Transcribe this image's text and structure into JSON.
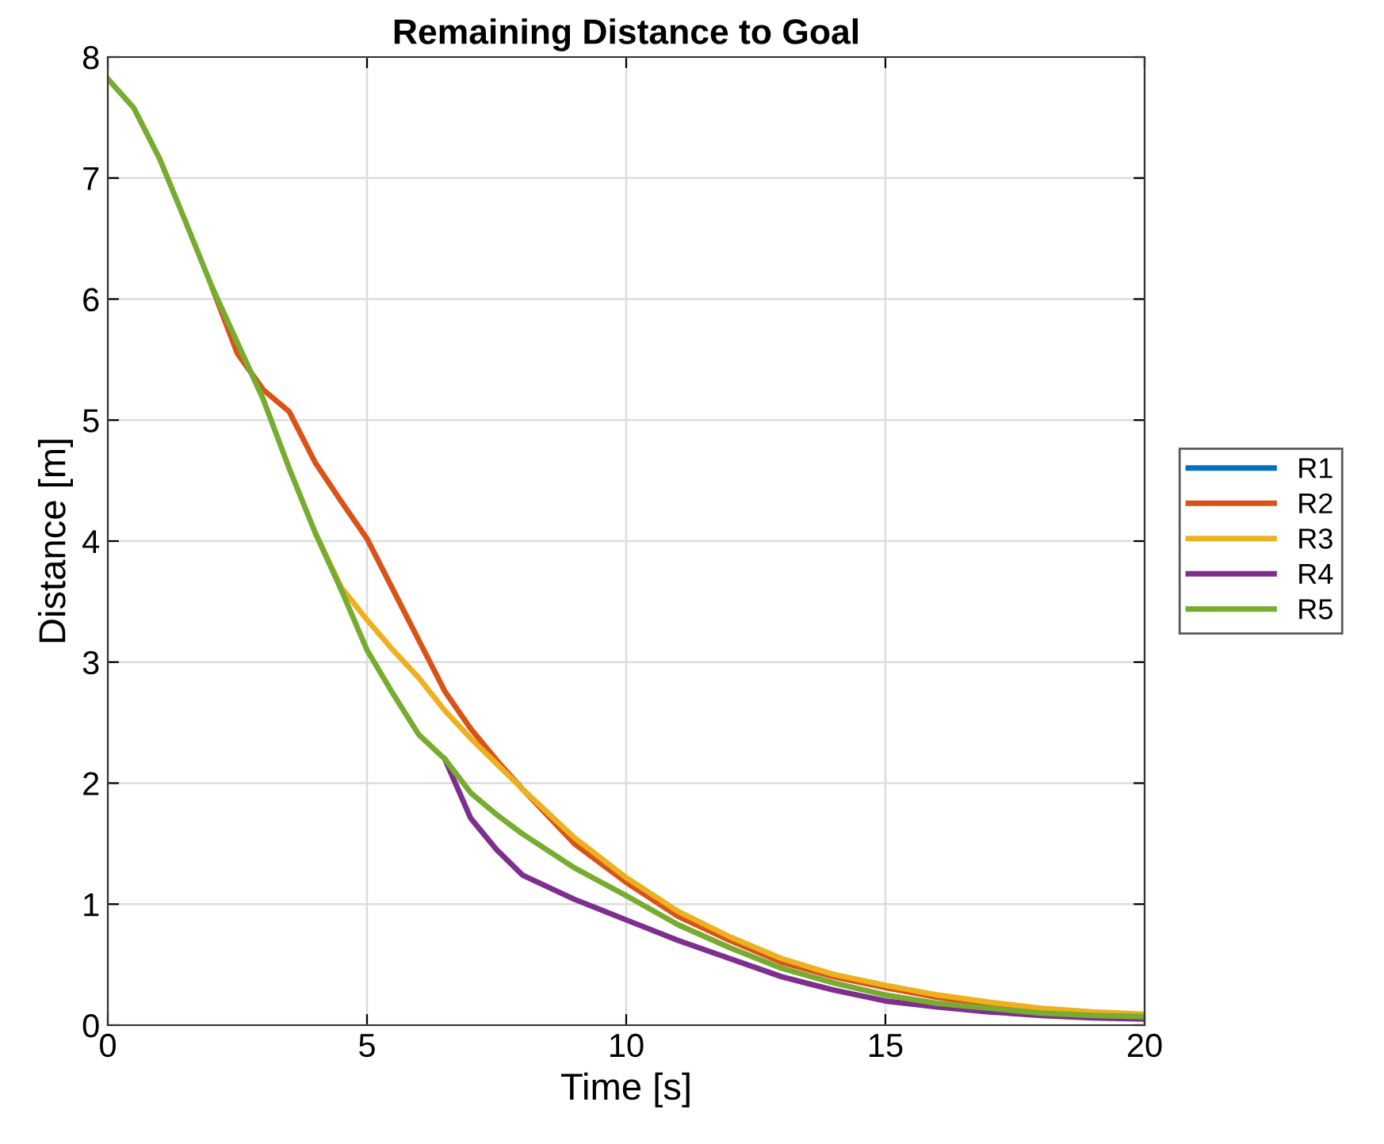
{
  "chart_data": {
    "type": "line",
    "title": "Remaining Distance to Goal",
    "xlabel": "Time [s]",
    "ylabel": "Distance [m]",
    "x": [
      0,
      0.5,
      1,
      1.5,
      2,
      2.5,
      3,
      3.5,
      4,
      4.5,
      5,
      5.5,
      6,
      6.5,
      7,
      7.5,
      8,
      9,
      10,
      11,
      12,
      13,
      14,
      15,
      16,
      17,
      18,
      19,
      20
    ],
    "series": [
      {
        "name": "R1",
        "color": "#0072bd",
        "values": [
          null,
          null,
          null,
          null,
          null,
          null,
          null,
          null,
          null,
          null,
          null,
          null,
          null,
          null,
          null,
          null,
          null,
          null,
          null,
          null,
          null,
          null,
          null,
          null,
          null,
          null,
          null,
          null,
          null
        ]
      },
      {
        "name": "R2",
        "color": "#d95319",
        "values": [
          null,
          null,
          null,
          null,
          6.11,
          5.55,
          5.25,
          5.07,
          4.65,
          4.33,
          4.02,
          3.6,
          3.18,
          2.76,
          2.45,
          2.19,
          1.95,
          1.5,
          1.18,
          0.9,
          0.7,
          0.52,
          0.4,
          0.31,
          0.23,
          0.17,
          0.13,
          null,
          null
        ]
      },
      {
        "name": "R3",
        "color": "#edb120",
        "values": [
          null,
          null,
          null,
          null,
          null,
          null,
          null,
          null,
          4.07,
          3.62,
          3.35,
          3.1,
          2.87,
          2.6,
          2.37,
          2.16,
          1.95,
          1.55,
          1.22,
          0.94,
          0.73,
          0.55,
          0.42,
          0.33,
          0.25,
          0.19,
          0.14,
          0.11,
          0.09
        ]
      },
      {
        "name": "R4",
        "color": "#7e2f8e",
        "values": [
          null,
          null,
          null,
          null,
          null,
          null,
          null,
          null,
          null,
          null,
          null,
          null,
          null,
          2.2,
          1.71,
          1.45,
          1.24,
          1.04,
          0.87,
          0.7,
          0.55,
          0.4,
          0.29,
          0.2,
          0.15,
          0.11,
          0.08,
          0.06,
          0.05
        ]
      },
      {
        "name": "R5",
        "color": "#77ac30",
        "values": [
          7.82,
          7.58,
          7.16,
          6.64,
          6.11,
          5.64,
          5.17,
          4.6,
          4.07,
          3.6,
          3.1,
          2.74,
          2.4,
          2.2,
          1.92,
          1.74,
          1.58,
          1.3,
          1.07,
          0.83,
          0.64,
          0.47,
          0.35,
          0.25,
          0.18,
          0.14,
          0.1,
          0.08,
          0.07
        ]
      }
    ],
    "xlim": [
      0,
      20
    ],
    "xticks": [
      0,
      5,
      10,
      15,
      20
    ],
    "ylim": [
      0,
      8
    ],
    "yticks": [
      0,
      1,
      2,
      3,
      4,
      5,
      6,
      7,
      8
    ],
    "grid": true,
    "legend": "right",
    "marker": "none",
    "line_style": "solid"
  }
}
